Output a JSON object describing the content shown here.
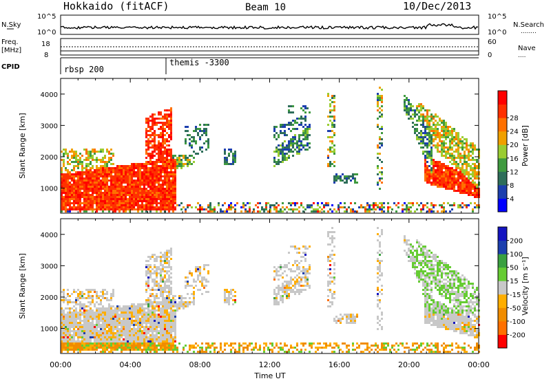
{
  "header": {
    "station": "Hokkaido (fitACF)",
    "beam": "Beam 10",
    "date": "10/Dec/2013"
  },
  "noise_panel": {
    "left_label": "N.Sky",
    "right_label": "N.Search",
    "right_marker": "........",
    "ticks": [
      "10^5",
      "10^0"
    ]
  },
  "freq_panel": {
    "left_label_1": "Freq.",
    "left_label_2": "[MHz]",
    "left_ticks": [
      "18",
      "8"
    ],
    "right_ticks": [
      "60",
      "0"
    ],
    "right_label": "Nave",
    "right_marker": "...."
  },
  "cpid_panel": {
    "label": "CPID",
    "segments": [
      "rbsp 200",
      "themis -3300"
    ]
  },
  "colors": {
    "power": [
      "#0000ff",
      "#1c3fae",
      "#2e6e5a",
      "#3f9a3f",
      "#9acd32",
      "#f0a000",
      "#ff7000",
      "#ff3000",
      "#ff0000"
    ],
    "velocity": [
      "#ff0000",
      "#ff7000",
      "#f08c00",
      "#ffae00",
      "#c8c8c8",
      "#66cc33",
      "#3aa040",
      "#1c3fae",
      "#1414c0"
    ]
  },
  "chart_data": [
    {
      "type": "heatmap",
      "name": "power",
      "ylabel": "Slant Range [km]",
      "xlabel": "",
      "x_ticks": [
        "00:00",
        "04:00",
        "08:00",
        "12:00",
        "16:00",
        "20:00",
        "00:00"
      ],
      "y_ticks": [
        "1000",
        "2000",
        "3000",
        "4000"
      ],
      "x_range_hours": [
        0,
        24
      ],
      "y_range_km": [
        200,
        4500
      ],
      "colorbar_label": "Power [dB]",
      "colorbar_ticks": [
        "4",
        "8",
        "12",
        "16",
        "20",
        "24",
        "28"
      ],
      "colorbar_range": [
        0,
        30
      ]
    },
    {
      "type": "heatmap",
      "name": "velocity",
      "ylabel": "Slant Range [km]",
      "xlabel": "Time UT",
      "x_ticks": [
        "00:00",
        "04:00",
        "08:00",
        "12:00",
        "16:00",
        "20:00",
        "00:00"
      ],
      "y_ticks": [
        "1000",
        "2000",
        "3000",
        "4000"
      ],
      "x_range_hours": [
        0,
        24
      ],
      "y_range_km": [
        200,
        4500
      ],
      "colorbar_label": "Velocity [m s⁻¹]",
      "colorbar_ticks": [
        "-200",
        "-100",
        "-50",
        "-15",
        "15",
        "50",
        "100",
        "200"
      ]
    }
  ]
}
